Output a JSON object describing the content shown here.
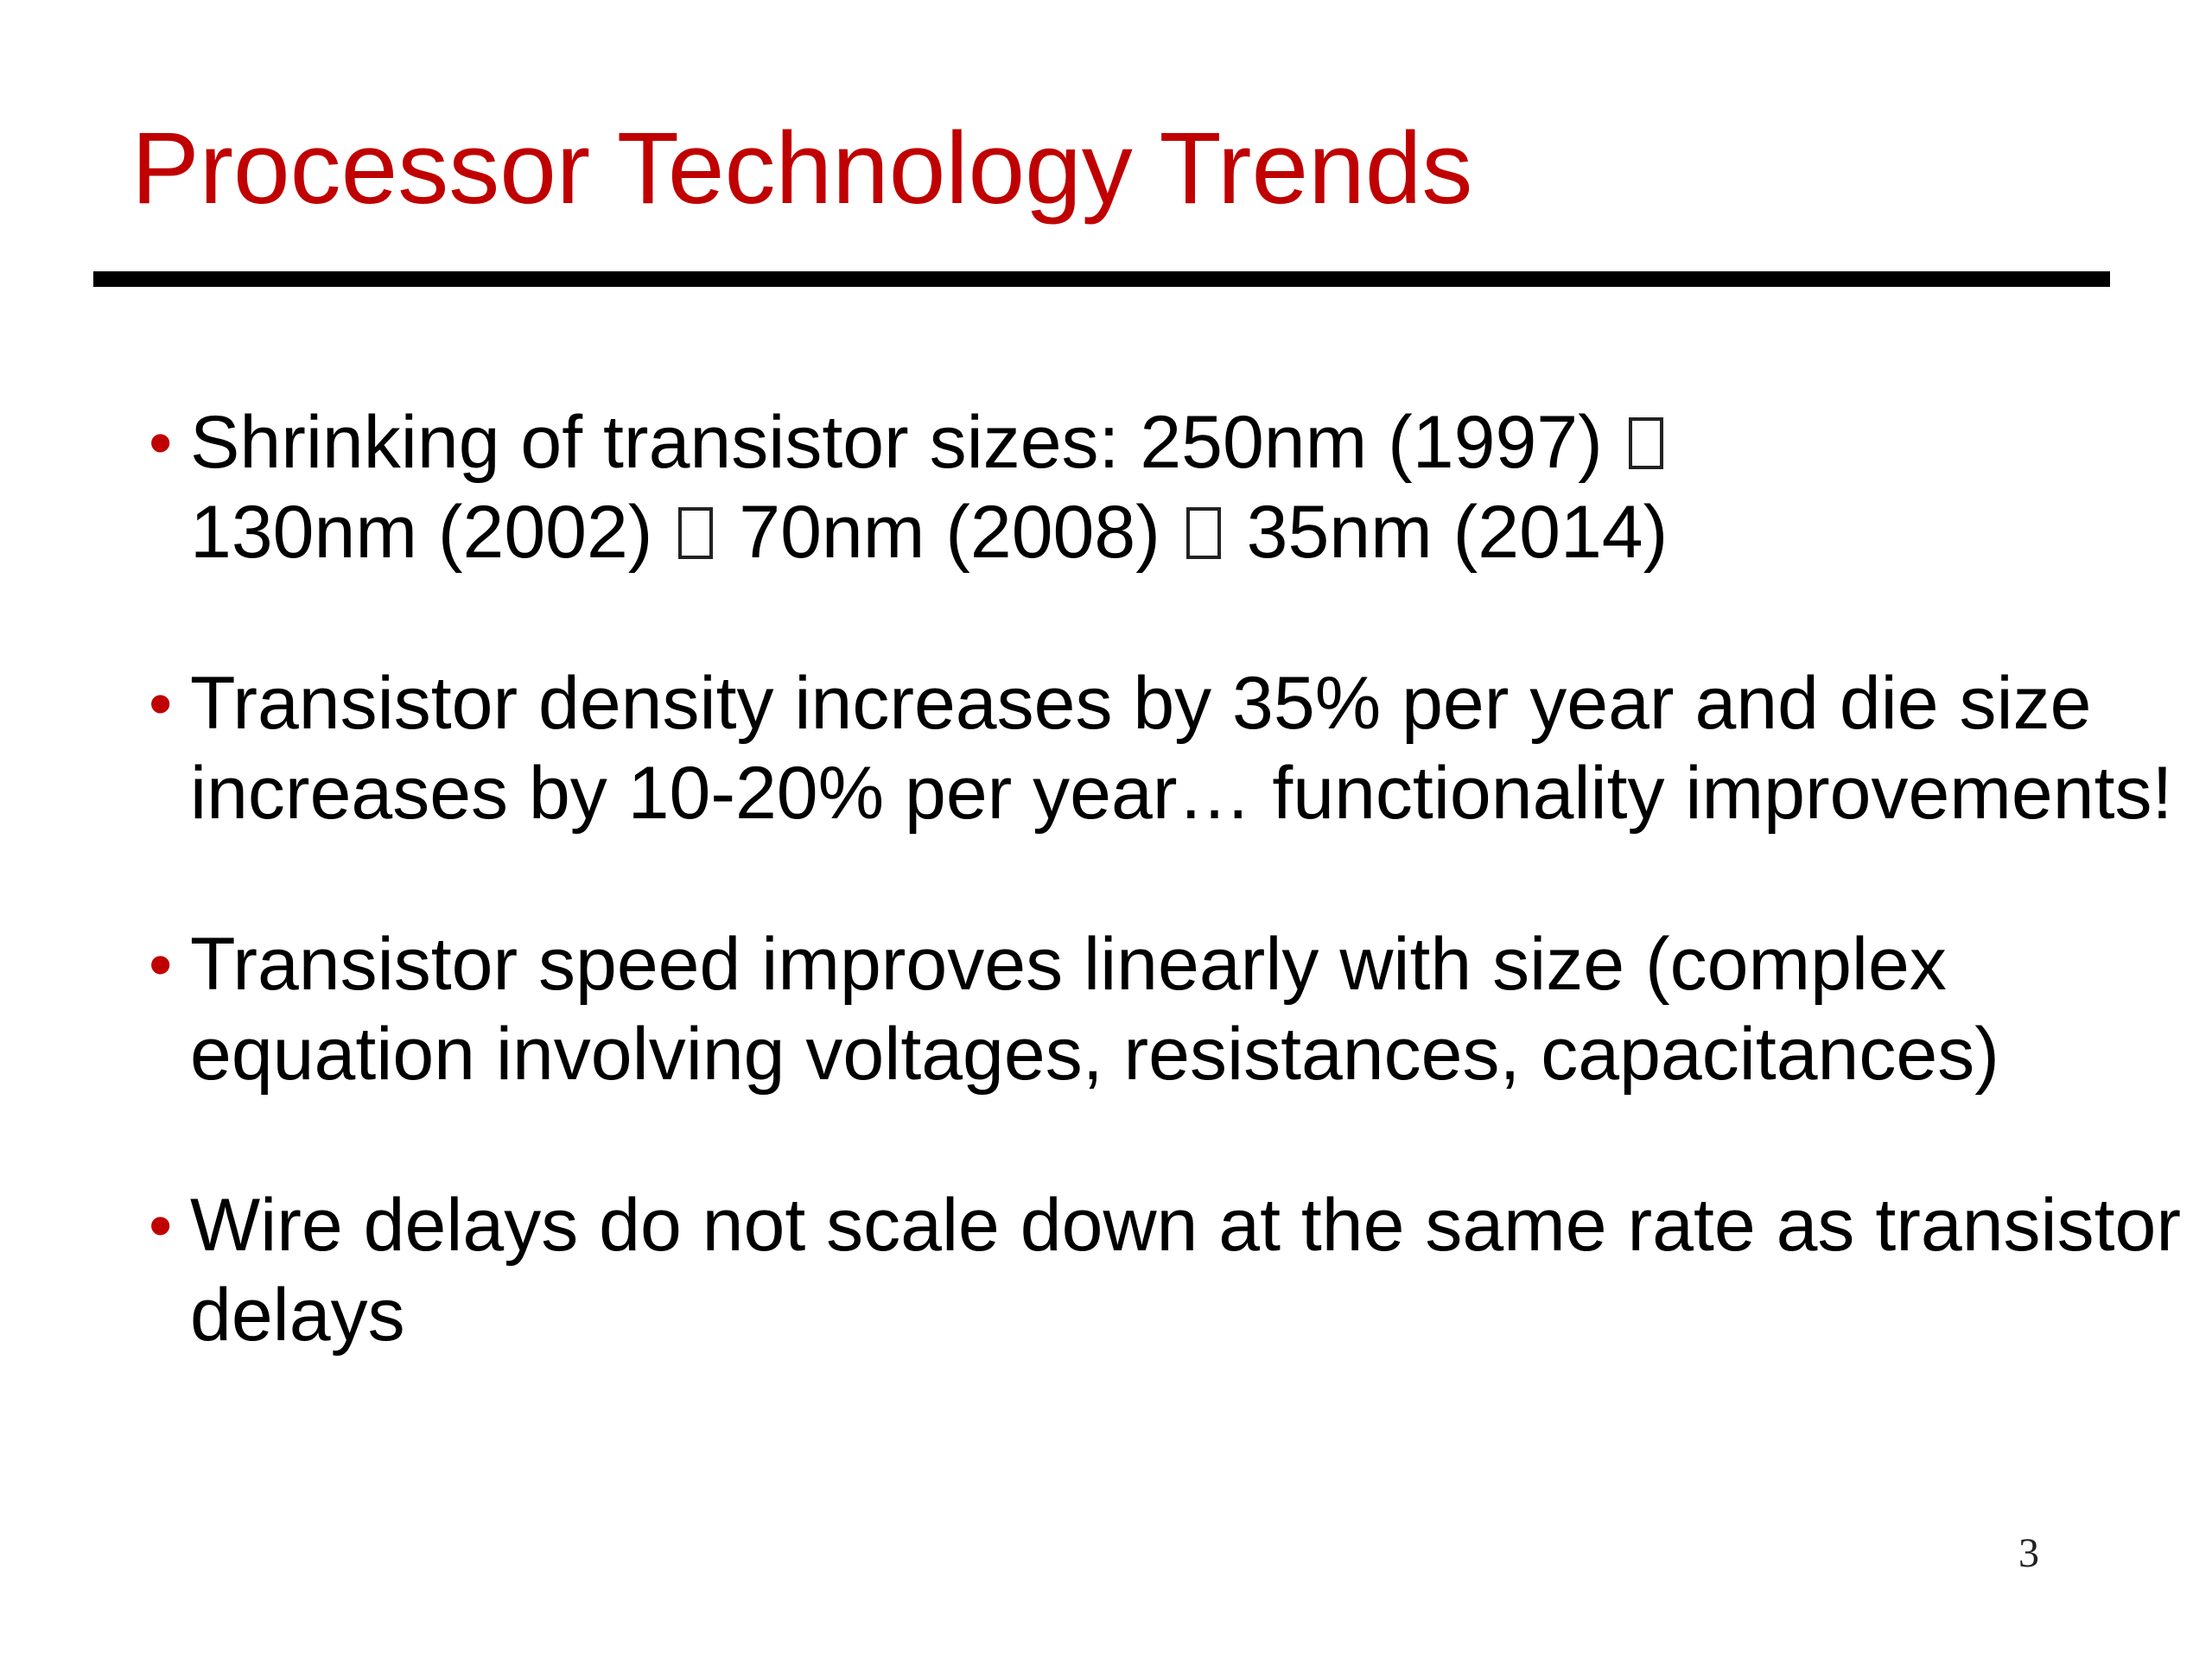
{
  "slide": {
    "title": "Processor Technology Trends",
    "page_number": "3",
    "colors": {
      "title": "#c00000",
      "bullet_marker": "#c00000",
      "rule": "#000000",
      "body_text": "#000000"
    },
    "bullets": [
      {
        "marker": "•",
        "segments": [
          "Shrinking of transistor sizes: 250nm (1997) ",
          " 130nm (2002) ",
          " 70nm (2008) ",
          " 35nm (2014)"
        ]
      },
      {
        "marker": "•",
        "text": "Transistor density increases by 35% per year and die size increases by 10-20% per year… functionality improvements!"
      },
      {
        "marker": "•",
        "text": "Transistor speed improves linearly with size (complex equation involving voltages, resistances, capacitances)"
      },
      {
        "marker": "•",
        "text": "Wire delays do not scale down at the same rate as transistor delays"
      }
    ]
  }
}
